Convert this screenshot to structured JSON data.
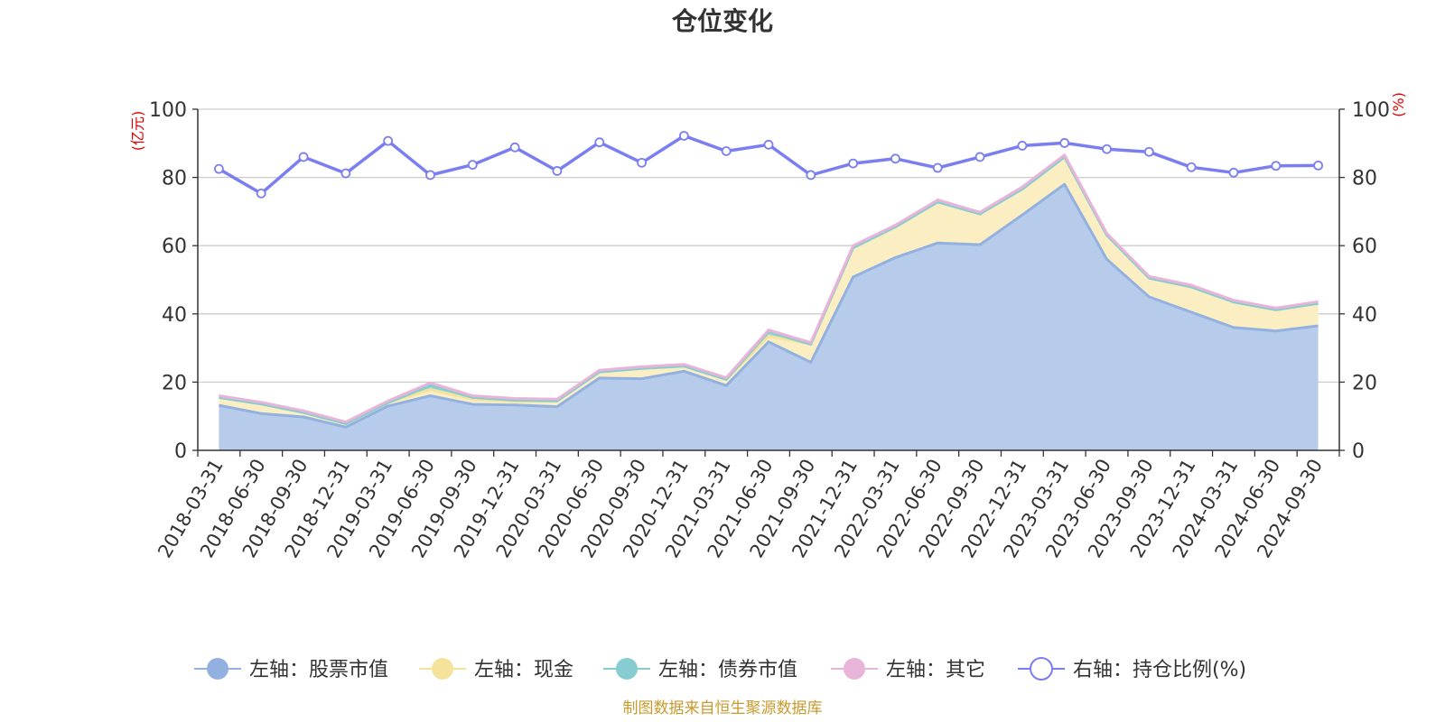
{
  "chart_data": {
    "type": "area",
    "title": "仓位变化",
    "left_unit": "(亿元)",
    "right_unit": "(%)",
    "ylim_left": [
      0,
      100
    ],
    "ylim_right": [
      0,
      100
    ],
    "yticks": [
      0,
      20,
      40,
      60,
      80,
      100
    ],
    "grid": true,
    "legend_position": "bottom",
    "categories": [
      "2018-03-31",
      "2018-06-30",
      "2018-09-30",
      "2018-12-31",
      "2019-03-31",
      "2019-06-30",
      "2019-09-30",
      "2019-12-31",
      "2020-03-31",
      "2020-06-30",
      "2020-09-30",
      "2020-12-31",
      "2021-03-31",
      "2021-06-30",
      "2021-09-30",
      "2021-12-31",
      "2022-03-31",
      "2022-06-30",
      "2022-09-30",
      "2022-12-31",
      "2023-03-31",
      "2023-06-30",
      "2023-09-30",
      "2023-12-31",
      "2024-03-31",
      "2024-06-30",
      "2024-09-30"
    ],
    "series": [
      {
        "name": "左轴：股票市值",
        "axis": "left",
        "stack": true,
        "color": "#93b1e0",
        "fill": "#b7cbea",
        "values": [
          13.2,
          10.8,
          9.8,
          6.8,
          13.0,
          16.0,
          13.5,
          13.3,
          12.8,
          21.2,
          21.0,
          23.2,
          19.0,
          31.8,
          25.8,
          50.8,
          56.5,
          60.8,
          60.3,
          69.0,
          78.0,
          56.0,
          45.0,
          40.5,
          36.0,
          35.0,
          36.5
        ]
      },
      {
        "name": "左轴：现金",
        "axis": "left",
        "stack": true,
        "color": "#f5e39b",
        "fill": "#faeec2",
        "values": [
          2.3,
          2.8,
          1.3,
          1.0,
          1.0,
          1.8,
          1.5,
          1.0,
          1.7,
          1.8,
          3.0,
          1.5,
          1.8,
          1.7,
          5.3,
          8.6,
          9.0,
          12.0,
          9.0,
          7.6,
          8.0,
          7.1,
          5.5,
          7.4,
          7.5,
          6.2,
          6.6
        ]
      },
      {
        "name": "左轴：债券市值",
        "axis": "left",
        "stack": true,
        "color": "#87ccd1",
        "fill": "#9fd8dc",
        "values": [
          0,
          0,
          0,
          0,
          0,
          1.2,
          0.5,
          0.4,
          0,
          0,
          0,
          0,
          0,
          1.2,
          0,
          0,
          0,
          0,
          0,
          0,
          0,
          0,
          0,
          0,
          0,
          0,
          0
        ]
      },
      {
        "name": "左轴：其它",
        "axis": "left",
        "stack": true,
        "color": "#e8b4d8",
        "fill": "#f0cbe5",
        "values": [
          0.5,
          0.5,
          0.5,
          0.5,
          0.5,
          0.8,
          0.5,
          0.5,
          0.5,
          0.5,
          0.5,
          0.5,
          0.5,
          0.6,
          0.5,
          0.6,
          0.5,
          0.6,
          0.5,
          0.6,
          0.6,
          0.5,
          0.5,
          0.5,
          0.5,
          0.5,
          0.5
        ]
      },
      {
        "name": "右轴：持仓比例(%)",
        "axis": "right",
        "type": "line",
        "color": "#7a7ef0",
        "values": [
          82.5,
          75.3,
          86.0,
          81.2,
          90.7,
          80.7,
          83.7,
          88.8,
          81.9,
          90.3,
          84.3,
          92.2,
          87.7,
          89.6,
          80.7,
          84.1,
          85.5,
          82.8,
          86.0,
          89.3,
          90.1,
          88.3,
          87.5,
          83.0,
          81.4,
          83.4,
          83.5
        ]
      }
    ]
  },
  "footer": {
    "source": "制图数据来自恒生聚源数据库"
  }
}
